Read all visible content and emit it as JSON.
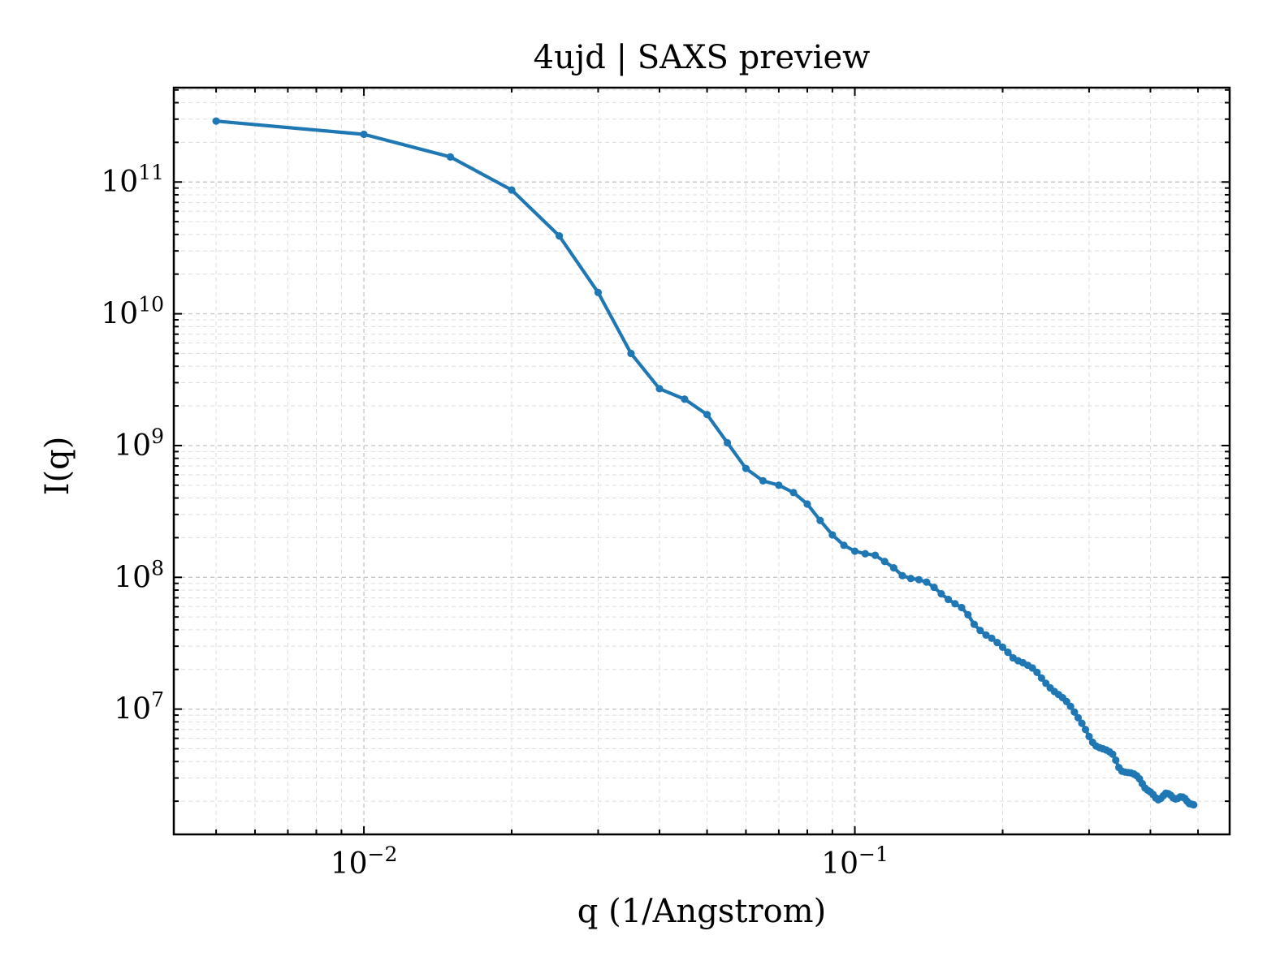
{
  "chart_data": {
    "type": "line",
    "title": "4ujd | SAXS preview",
    "xlabel": "q (1/Angstrom)",
    "ylabel": "I(q)",
    "xscale": "log",
    "yscale": "log",
    "xlim": [
      0.0041,
      0.58
    ],
    "ylim": [
      1120000.0,
      520000000000.0
    ],
    "grid": "major and minor, dashed, light gray",
    "legend": "none",
    "x_ticks": [
      {
        "base": "10",
        "exp": "−2",
        "value": 0.01
      },
      {
        "base": "10",
        "exp": "−1",
        "value": 0.1
      }
    ],
    "y_ticks": [
      {
        "base": "10",
        "exp": "7",
        "value": 10000000.0
      },
      {
        "base": "10",
        "exp": "8",
        "value": 100000000.0
      },
      {
        "base": "10",
        "exp": "9",
        "value": 1000000000.0
      },
      {
        "base": "10",
        "exp": "10",
        "value": 10000000000.0
      },
      {
        "base": "10",
        "exp": "11",
        "value": 100000000000.0
      }
    ],
    "series": [
      {
        "color": "#1f77b4",
        "marker": "circle",
        "points": [
          [
            0.005,
            290000000000.0
          ],
          [
            0.01,
            230000000000.0
          ],
          [
            0.015,
            155000000000.0
          ],
          [
            0.02,
            87000000000.0
          ],
          [
            0.025,
            39000000000.0
          ],
          [
            0.03,
            14500000000.0
          ],
          [
            0.035,
            5000000000.0
          ],
          [
            0.04,
            2700000000.0
          ],
          [
            0.045,
            2250000000.0
          ],
          [
            0.05,
            1720000000.0
          ],
          [
            0.055,
            1050000000.0
          ],
          [
            0.06,
            670000000.0
          ],
          [
            0.065,
            540000000.0
          ],
          [
            0.07,
            500000000.0
          ],
          [
            0.075,
            440000000.0
          ],
          [
            0.08,
            360000000.0
          ],
          [
            0.085,
            270000000.0
          ],
          [
            0.09,
            210000000.0
          ],
          [
            0.095,
            175000000.0
          ],
          [
            0.1,
            158000000.0
          ],
          [
            0.105,
            151000000.0
          ],
          [
            0.11,
            147000000.0
          ],
          [
            0.115,
            132000000.0
          ],
          [
            0.12,
            118000000.0
          ],
          [
            0.125,
            103000000.0
          ],
          [
            0.13,
            98000000.0
          ],
          [
            0.135,
            96000000.0
          ],
          [
            0.14,
            92000000.0
          ],
          [
            0.145,
            84000000.0
          ],
          [
            0.15,
            75000000.0
          ],
          [
            0.155,
            68000000.0
          ],
          [
            0.16,
            63000000.0
          ],
          [
            0.165,
            59000000.0
          ],
          [
            0.17,
            52000000.0
          ],
          [
            0.175,
            44000000.0
          ],
          [
            0.18,
            39500000.0
          ],
          [
            0.185,
            36500000.0
          ],
          [
            0.19,
            34500000.0
          ],
          [
            0.195,
            32000000.0
          ],
          [
            0.2,
            29500000.0
          ],
          [
            0.205,
            27000000.0
          ],
          [
            0.21,
            24500000.0
          ],
          [
            0.215,
            23300000.0
          ],
          [
            0.22,
            22500000.0
          ],
          [
            0.225,
            21500000.0
          ],
          [
            0.23,
            20500000.0
          ],
          [
            0.235,
            19000000.0
          ],
          [
            0.24,
            17200000.0
          ],
          [
            0.245,
            15700000.0
          ],
          [
            0.25,
            14500000.0
          ],
          [
            0.255,
            13600000.0
          ],
          [
            0.26,
            12900000.0
          ],
          [
            0.265,
            12200000.0
          ],
          [
            0.27,
            11400000.0
          ],
          [
            0.275,
            10500000.0
          ],
          [
            0.28,
            9500000.0
          ],
          [
            0.285,
            8600000.0
          ],
          [
            0.29,
            7800000.0
          ],
          [
            0.295,
            7000000.0
          ],
          [
            0.3,
            6200000.0
          ],
          [
            0.305,
            5600000.0
          ],
          [
            0.31,
            5250000.0
          ],
          [
            0.315,
            5100000.0
          ],
          [
            0.32,
            5000000.0
          ],
          [
            0.325,
            4900000.0
          ],
          [
            0.33,
            4750000.0
          ],
          [
            0.335,
            4550000.0
          ],
          [
            0.34,
            4100000.0
          ],
          [
            0.345,
            3600000.0
          ],
          [
            0.35,
            3380000.0
          ],
          [
            0.355,
            3330000.0
          ],
          [
            0.36,
            3300000.0
          ],
          [
            0.365,
            3280000.0
          ],
          [
            0.37,
            3220000.0
          ],
          [
            0.375,
            3120000.0
          ],
          [
            0.38,
            2960000.0
          ],
          [
            0.385,
            2720000.0
          ],
          [
            0.39,
            2520000.0
          ],
          [
            0.395,
            2420000.0
          ],
          [
            0.4,
            2350000.0
          ],
          [
            0.405,
            2250000.0
          ],
          [
            0.41,
            2120000.0
          ],
          [
            0.415,
            2050000.0
          ],
          [
            0.42,
            2100000.0
          ],
          [
            0.425,
            2200000.0
          ],
          [
            0.43,
            2300000.0
          ],
          [
            0.435,
            2280000.0
          ],
          [
            0.44,
            2220000.0
          ],
          [
            0.445,
            2120000.0
          ],
          [
            0.45,
            2080000.0
          ],
          [
            0.455,
            2100000.0
          ],
          [
            0.46,
            2160000.0
          ],
          [
            0.465,
            2150000.0
          ],
          [
            0.47,
            2100000.0
          ],
          [
            0.475,
            2000000.0
          ],
          [
            0.48,
            1920000.0
          ],
          [
            0.485,
            1900000.0
          ],
          [
            0.49,
            1880000.0
          ]
        ]
      }
    ]
  }
}
